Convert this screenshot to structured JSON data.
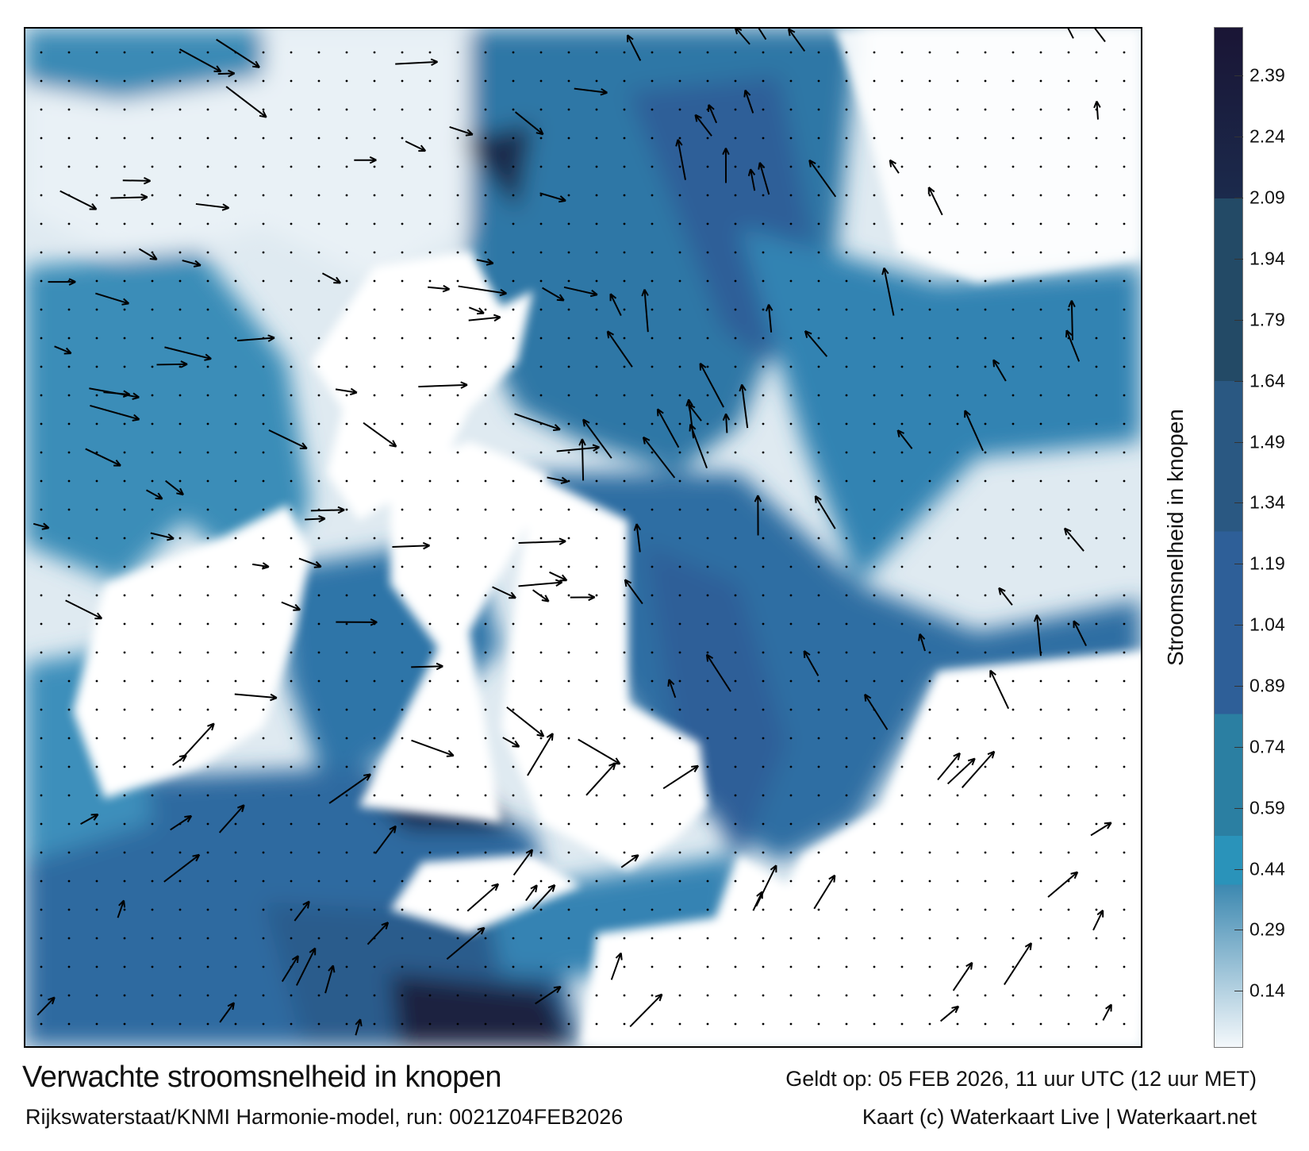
{
  "map": {
    "colors": {
      "sea_low": "#e8f1f6",
      "sea_mid": "#2a8fb5",
      "sea_high": "#2e5f98",
      "sea_max": "#1a1535",
      "land": "#ffffff"
    }
  },
  "colorbar": {
    "label": "Stroomsnelheid in knopen",
    "range": [
      0,
      2.51
    ],
    "ticks": [
      "0.14",
      "0.29",
      "0.44",
      "0.59",
      "0.74",
      "0.89",
      "1.04",
      "1.19",
      "1.34",
      "1.49",
      "1.64",
      "1.79",
      "1.94",
      "2.09",
      "2.24",
      "2.39"
    ],
    "bands": [
      {
        "from": 0.0,
        "to": 0.4,
        "color": "#f4f8fb",
        "gradient_to": "#3c88b0"
      },
      {
        "from": 0.4,
        "to": 0.52,
        "color": "#2a93ba"
      },
      {
        "from": 0.52,
        "to": 0.82,
        "color": "#2b7fa2"
      },
      {
        "from": 0.82,
        "to": 1.27,
        "color": "#2e5f98"
      },
      {
        "from": 1.27,
        "to": 1.64,
        "color": "#2a5882"
      },
      {
        "from": 1.64,
        "to": 2.09,
        "color": "#234a66"
      },
      {
        "from": 2.09,
        "to": 2.51,
        "color": "#1b2a4c",
        "gradient_to": "#1a1535"
      }
    ]
  },
  "footer": {
    "title": "Verwachte stroomsnelheid in knopen",
    "valid": "Geldt op: 05 FEB 2026, 11 uur UTC (12 uur MET)",
    "model": "Rijkswaterstaat/KNMI Harmonie-model, run: 0021Z04FEB2026",
    "credit": "Kaart (c) Waterkaart Live | Waterkaart.net"
  }
}
